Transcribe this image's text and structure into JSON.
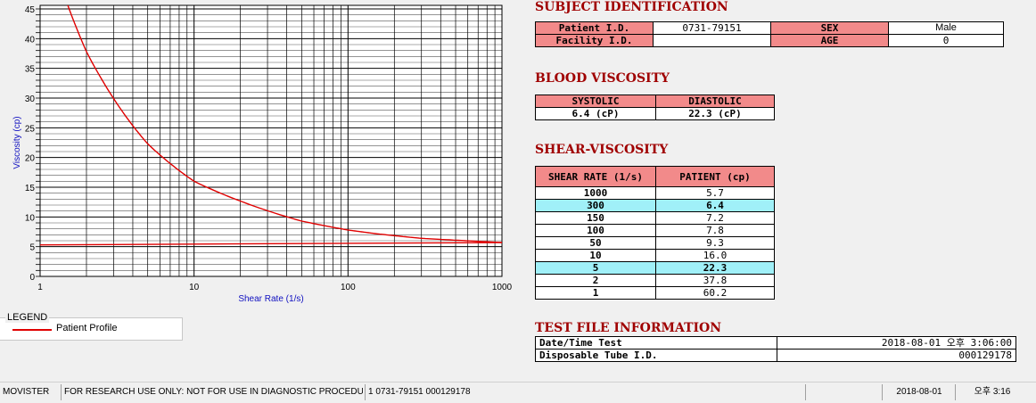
{
  "chart_data": {
    "type": "line",
    "xlabel": "Shear Rate (1/s)",
    "ylabel": "Viscosity (cp)",
    "xscale": "log",
    "xlim": [
      1,
      1000
    ],
    "ylim": [
      0,
      45
    ],
    "x_ticks": [
      "1",
      "10",
      "100",
      "1000"
    ],
    "y_ticks": [
      "0",
      "5",
      "10",
      "15",
      "20",
      "25",
      "30",
      "35",
      "40",
      "45"
    ],
    "grid": true,
    "series": [
      {
        "name": "Patient Profile",
        "color": "#e00000",
        "x": [
          1,
          2,
          5,
          10,
          50,
          100,
          150,
          300,
          1000
        ],
        "y": [
          60.2,
          37.8,
          22.3,
          16.0,
          9.3,
          7.8,
          7.2,
          6.4,
          5.7
        ]
      },
      {
        "color": "#e00000",
        "x": [
          1,
          1000
        ],
        "y": [
          5.3,
          5.7
        ]
      }
    ],
    "legend": "bottom-left"
  },
  "legend": {
    "title": "LEGEND",
    "items": [
      "Patient Profile"
    ]
  },
  "subject": {
    "title": "SUBJECT IDENTIFICATION",
    "patient_id_label": "Patient I.D.",
    "patient_id": "0731-79151",
    "sex_label": "SEX",
    "sex": "Male",
    "facility_label": "Facility I.D.",
    "facility": "",
    "age_label": "AGE",
    "age": "0"
  },
  "blood": {
    "title": "BLOOD VISCOSITY",
    "systolic_label": "SYSTOLIC",
    "systolic": "6.4 (cP)",
    "diastolic_label": "DIASTOLIC",
    "diastolic": "22.3 (cP)"
  },
  "shear": {
    "title": "SHEAR-VISCOSITY",
    "col1": "SHEAR RATE (1/s)",
    "col2": "PATIENT (cp)",
    "rows": [
      {
        "rate": "1000",
        "value": "5.7",
        "hl": false
      },
      {
        "rate": "300",
        "value": "6.4",
        "hl": true
      },
      {
        "rate": "150",
        "value": "7.2",
        "hl": false
      },
      {
        "rate": "100",
        "value": "7.8",
        "hl": false
      },
      {
        "rate": "50",
        "value": "9.3",
        "hl": false
      },
      {
        "rate": "10",
        "value": "16.0",
        "hl": false
      },
      {
        "rate": "5",
        "value": "22.3",
        "hl": true
      },
      {
        "rate": "2",
        "value": "37.8",
        "hl": false
      },
      {
        "rate": "1",
        "value": "60.2",
        "hl": false
      }
    ]
  },
  "testfile": {
    "title": "TEST FILE INFORMATION",
    "date_label": "Date/Time Test",
    "date": "2018-08-01  오후 3:06:00",
    "tube_label": "Disposable Tube I.D.",
    "tube": "000129178"
  },
  "status": {
    "app": "MOVISTER",
    "notice": "FOR RESEARCH USE ONLY: NOT FOR USE IN DIAGNOSTIC PROCEDURES",
    "record": "1  0731-79151  000129178",
    "empty": "",
    "date": "2018-08-01",
    "time": "오후 3:16"
  }
}
